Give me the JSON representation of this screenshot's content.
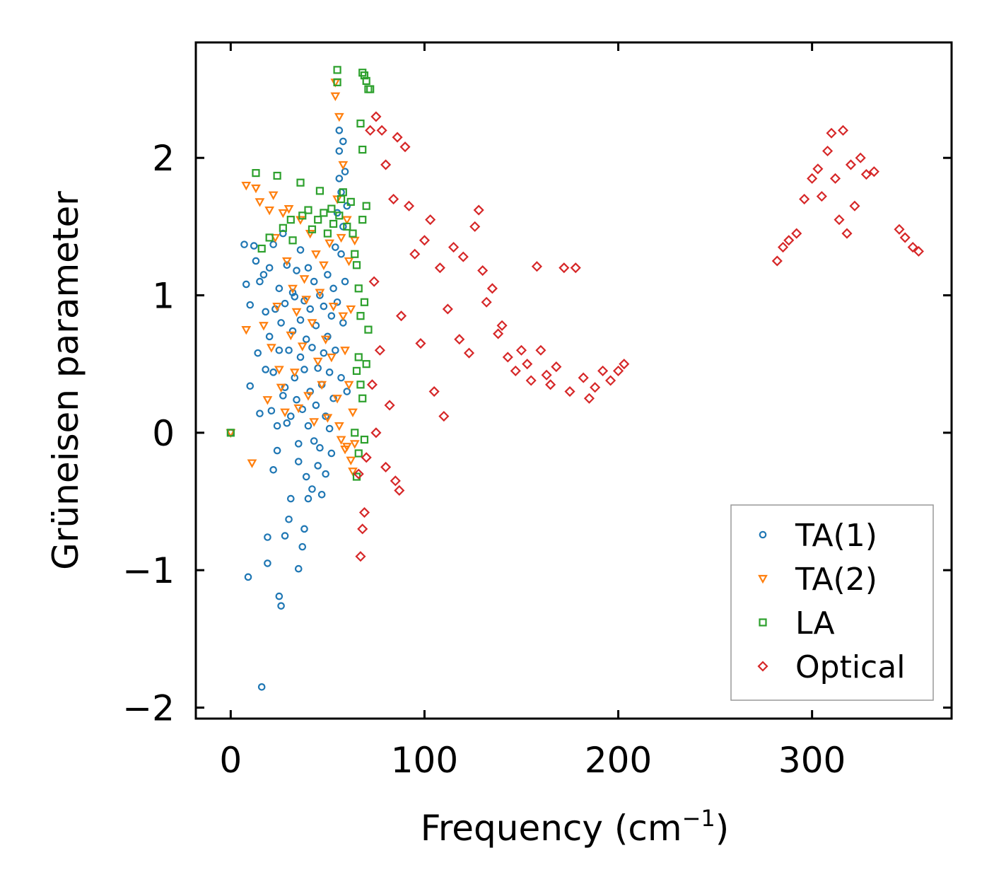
{
  "chart_data": {
    "type": "scatter",
    "title": "",
    "xlabel": "Frequency (cm",
    "xlabel_sup": "−1",
    "xlabel_close": ")",
    "ylabel": "Grüneisen parameter",
    "xlim": [
      -18,
      372
    ],
    "ylim": [
      -2.08,
      2.84
    ],
    "xticks": [
      0,
      100,
      200,
      300
    ],
    "xtick_labels": [
      "0",
      "100",
      "200",
      "300"
    ],
    "yticks": [
      -2,
      -1,
      0,
      1,
      2
    ],
    "ytick_labels": [
      "−2",
      "−1",
      "0",
      "1",
      "2"
    ],
    "legend_position": "lower-right",
    "series": [
      {
        "name": "TA(1)",
        "marker": "circle",
        "color": "#1f77b4",
        "points": [
          [
            0,
            0
          ],
          [
            7,
            1.37
          ],
          [
            8,
            1.08
          ],
          [
            9,
            -1.05
          ],
          [
            10,
            0.34
          ],
          [
            10,
            0.93
          ],
          [
            12,
            1.36
          ],
          [
            13,
            1.25
          ],
          [
            14,
            0.58
          ],
          [
            15,
            1.1
          ],
          [
            15,
            0.14
          ],
          [
            16,
            -1.85
          ],
          [
            17,
            1.15
          ],
          [
            18,
            0.46
          ],
          [
            18,
            0.88
          ],
          [
            19,
            -0.95
          ],
          [
            19,
            -0.76
          ],
          [
            20,
            1.2
          ],
          [
            20,
            0.7
          ],
          [
            21,
            0.16
          ],
          [
            22,
            0.44
          ],
          [
            22,
            1.37
          ],
          [
            22,
            -0.27
          ],
          [
            23,
            0.9
          ],
          [
            24,
            0.05
          ],
          [
            24,
            -0.13
          ],
          [
            25,
            1.05
          ],
          [
            25,
            0.6
          ],
          [
            25,
            -1.19
          ],
          [
            26,
            -1.26
          ],
          [
            26,
            0.8
          ],
          [
            27,
            0.27
          ],
          [
            27,
            1.45
          ],
          [
            28,
            0.94
          ],
          [
            28,
            -0.75
          ],
          [
            28,
            0.33
          ],
          [
            29,
            0.07
          ],
          [
            29,
            1.22
          ],
          [
            30,
            0.6
          ],
          [
            30,
            -0.63
          ],
          [
            31,
            0.12
          ],
          [
            31,
            -0.48
          ],
          [
            32,
            0.74
          ],
          [
            32,
            1.02
          ],
          [
            33,
            0.4
          ],
          [
            33,
            0.99
          ],
          [
            34,
            0.24
          ],
          [
            34,
            1.18
          ],
          [
            35,
            -0.08
          ],
          [
            35,
            -0.21
          ],
          [
            35,
            -0.99
          ],
          [
            36,
            0.82
          ],
          [
            36,
            0.55
          ],
          [
            36,
            1.33
          ],
          [
            37,
            -0.83
          ],
          [
            37,
            0.17
          ],
          [
            38,
            0.96
          ],
          [
            38,
            -0.7
          ],
          [
            38,
            0.46
          ],
          [
            39,
            -0.32
          ],
          [
            39,
            0.68
          ],
          [
            40,
            0.05
          ],
          [
            40,
            1.2
          ],
          [
            40,
            -0.48
          ],
          [
            41,
            0.9
          ],
          [
            41,
            0.3
          ],
          [
            42,
            -0.41
          ],
          [
            42,
            0.62
          ],
          [
            43,
            1.1
          ],
          [
            43,
            -0.06
          ],
          [
            44,
            0.2
          ],
          [
            44,
            0.78
          ],
          [
            45,
            -0.24
          ],
          [
            45,
            0.47
          ],
          [
            46,
            1.0
          ],
          [
            46,
            -0.11
          ],
          [
            47,
            0.35
          ],
          [
            47,
            -0.45
          ],
          [
            48,
            0.58
          ],
          [
            48,
            0.92
          ],
          [
            49,
            -0.3
          ],
          [
            49,
            0.12
          ],
          [
            50,
            0.7
          ],
          [
            50,
            1.15
          ],
          [
            51,
            0.03
          ],
          [
            51,
            0.44
          ],
          [
            52,
            0.85
          ],
          [
            52,
            -0.15
          ],
          [
            53,
            0.25
          ],
          [
            53,
            1.05
          ],
          [
            54,
            0.6
          ],
          [
            54,
            1.35
          ],
          [
            55,
            0.95
          ],
          [
            55,
            1.6
          ],
          [
            56,
            1.85
          ],
          [
            56,
            2.05
          ],
          [
            56,
            2.2
          ],
          [
            57,
            1.3
          ],
          [
            57,
            0.4
          ],
          [
            57,
            1.75
          ],
          [
            58,
            1.5
          ],
          [
            58,
            2.12
          ],
          [
            58,
            0.8
          ],
          [
            59,
            1.9
          ],
          [
            59,
            1.1
          ],
          [
            60,
            0.3
          ],
          [
            60,
            1.65
          ]
        ]
      },
      {
        "name": "TA(2)",
        "marker": "triangle",
        "color": "#ff7f0e",
        "points": [
          [
            0,
            0
          ],
          [
            8,
            1.8
          ],
          [
            8,
            0.75
          ],
          [
            11,
            -0.22
          ],
          [
            13,
            1.78
          ],
          [
            15,
            1.68
          ],
          [
            17,
            0.78
          ],
          [
            19,
            0.24
          ],
          [
            20,
            1.62
          ],
          [
            21,
            0.62
          ],
          [
            22,
            1.73
          ],
          [
            23,
            1.42
          ],
          [
            24,
            0.92
          ],
          [
            25,
            0.46
          ],
          [
            26,
            0.33
          ],
          [
            27,
            1.6
          ],
          [
            28,
            0.15
          ],
          [
            29,
            1.25
          ],
          [
            30,
            1.63
          ],
          [
            31,
            0.71
          ],
          [
            32,
            1.05
          ],
          [
            33,
            0.44
          ],
          [
            34,
            0.88
          ],
          [
            35,
            0.18
          ],
          [
            36,
            1.55
          ],
          [
            37,
            0.63
          ],
          [
            38,
            1.12
          ],
          [
            39,
            0.97
          ],
          [
            40,
            0.27
          ],
          [
            41,
            1.45
          ],
          [
            42,
            0.8
          ],
          [
            43,
            0.08
          ],
          [
            44,
            1.3
          ],
          [
            45,
            0.52
          ],
          [
            46,
            1.02
          ],
          [
            47,
            0.35
          ],
          [
            48,
            1.22
          ],
          [
            49,
            0.68
          ],
          [
            50,
            0.11
          ],
          [
            51,
            1.38
          ],
          [
            52,
            0.55
          ],
          [
            53,
            0.92
          ],
          [
            54,
            2.45
          ],
          [
            54,
            2.55
          ],
          [
            55,
            0.25
          ],
          [
            55,
            1.7
          ],
          [
            56,
            2.3
          ],
          [
            56,
            0.05
          ],
          [
            57,
            1.42
          ],
          [
            57,
            -0.05
          ],
          [
            58,
            0.85
          ],
          [
            58,
            1.95
          ],
          [
            59,
            -0.12
          ],
          [
            59,
            0.6
          ],
          [
            60,
            1.55
          ],
          [
            60,
            -0.1
          ],
          [
            61,
            0.35
          ],
          [
            61,
            1.25
          ],
          [
            62,
            -0.2
          ],
          [
            62,
            0.9
          ],
          [
            63,
            -0.28
          ],
          [
            63,
            0.15
          ],
          [
            64,
            -0.08
          ],
          [
            64,
            1.4
          ]
        ]
      },
      {
        "name": "LA",
        "marker": "square",
        "color": "#2ca02c",
        "points": [
          [
            0,
            0
          ],
          [
            13,
            1.89
          ],
          [
            16,
            1.34
          ],
          [
            20,
            1.42
          ],
          [
            24,
            1.87
          ],
          [
            27,
            1.49
          ],
          [
            31,
            1.55
          ],
          [
            32,
            1.4
          ],
          [
            36,
            1.82
          ],
          [
            37,
            1.58
          ],
          [
            40,
            1.62
          ],
          [
            42,
            1.48
          ],
          [
            45,
            1.55
          ],
          [
            46,
            1.76
          ],
          [
            48,
            1.6
          ],
          [
            50,
            1.45
          ],
          [
            52,
            1.63
          ],
          [
            53,
            1.52
          ],
          [
            55,
            2.64
          ],
          [
            55,
            2.55
          ],
          [
            56,
            1.58
          ],
          [
            57,
            1.7
          ],
          [
            58,
            1.75
          ],
          [
            60,
            1.5
          ],
          [
            62,
            1.68
          ],
          [
            63,
            1.45
          ],
          [
            64,
            1.3
          ],
          [
            65,
            -0.32
          ],
          [
            65,
            1.22
          ],
          [
            66,
            1.05
          ],
          [
            66,
            0.55
          ],
          [
            67,
            0.85
          ],
          [
            67,
            2.25
          ],
          [
            68,
            2.62
          ],
          [
            68,
            2.06
          ],
          [
            68,
            0.25
          ],
          [
            69,
            2.6
          ],
          [
            69,
            -0.05
          ],
          [
            70,
            2.56
          ],
          [
            70,
            1.65
          ],
          [
            71,
            2.5
          ],
          [
            71,
            0.75
          ],
          [
            72,
            2.5
          ],
          [
            67,
            0.35
          ],
          [
            66,
            -0.15
          ],
          [
            68,
            1.55
          ],
          [
            69,
            0.95
          ],
          [
            70,
            0.5
          ],
          [
            64,
            0.0
          ],
          [
            65,
            0.45
          ]
        ]
      },
      {
        "name": "Optical",
        "marker": "diamond",
        "color": "#d62728",
        "points": [
          [
            66,
            -0.3
          ],
          [
            67,
            -0.9
          ],
          [
            68,
            -0.7
          ],
          [
            69,
            -0.58
          ],
          [
            70,
            -0.18
          ],
          [
            72,
            2.2
          ],
          [
            73,
            0.35
          ],
          [
            74,
            1.1
          ],
          [
            75,
            2.3
          ],
          [
            75,
            0.0
          ],
          [
            77,
            0.6
          ],
          [
            78,
            2.2
          ],
          [
            80,
            1.95
          ],
          [
            80,
            -0.25
          ],
          [
            82,
            0.2
          ],
          [
            84,
            1.7
          ],
          [
            85,
            -0.35
          ],
          [
            86,
            2.15
          ],
          [
            87,
            -0.42
          ],
          [
            88,
            0.85
          ],
          [
            90,
            2.08
          ],
          [
            92,
            1.65
          ],
          [
            95,
            1.3
          ],
          [
            98,
            0.65
          ],
          [
            100,
            1.4
          ],
          [
            103,
            1.55
          ],
          [
            105,
            0.3
          ],
          [
            108,
            1.2
          ],
          [
            110,
            0.12
          ],
          [
            112,
            0.9
          ],
          [
            115,
            1.35
          ],
          [
            118,
            0.68
          ],
          [
            120,
            1.28
          ],
          [
            123,
            0.58
          ],
          [
            126,
            1.5
          ],
          [
            128,
            1.62
          ],
          [
            130,
            1.18
          ],
          [
            132,
            0.95
          ],
          [
            135,
            1.05
          ],
          [
            138,
            0.72
          ],
          [
            140,
            0.78
          ],
          [
            143,
            0.55
          ],
          [
            147,
            0.45
          ],
          [
            150,
            0.6
          ],
          [
            153,
            0.5
          ],
          [
            155,
            0.38
          ],
          [
            158,
            1.21
          ],
          [
            160,
            0.6
          ],
          [
            163,
            0.42
          ],
          [
            165,
            0.35
          ],
          [
            168,
            0.48
          ],
          [
            172,
            1.2
          ],
          [
            175,
            0.3
          ],
          [
            178,
            1.2
          ],
          [
            182,
            0.4
          ],
          [
            185,
            0.25
          ],
          [
            188,
            0.33
          ],
          [
            192,
            0.45
          ],
          [
            196,
            0.38
          ],
          [
            200,
            0.45
          ],
          [
            203,
            0.5
          ],
          [
            282,
            1.25
          ],
          [
            285,
            1.35
          ],
          [
            288,
            1.4
          ],
          [
            292,
            1.45
          ],
          [
            296,
            1.7
          ],
          [
            300,
            1.85
          ],
          [
            303,
            1.92
          ],
          [
            305,
            1.72
          ],
          [
            308,
            2.05
          ],
          [
            310,
            2.18
          ],
          [
            312,
            1.85
          ],
          [
            314,
            1.55
          ],
          [
            316,
            2.2
          ],
          [
            318,
            1.45
          ],
          [
            320,
            1.95
          ],
          [
            322,
            1.65
          ],
          [
            325,
            2.0
          ],
          [
            328,
            1.88
          ],
          [
            332,
            1.9
          ],
          [
            345,
            1.48
          ],
          [
            348,
            1.42
          ],
          [
            352,
            1.35
          ],
          [
            355,
            1.32
          ]
        ]
      }
    ]
  }
}
